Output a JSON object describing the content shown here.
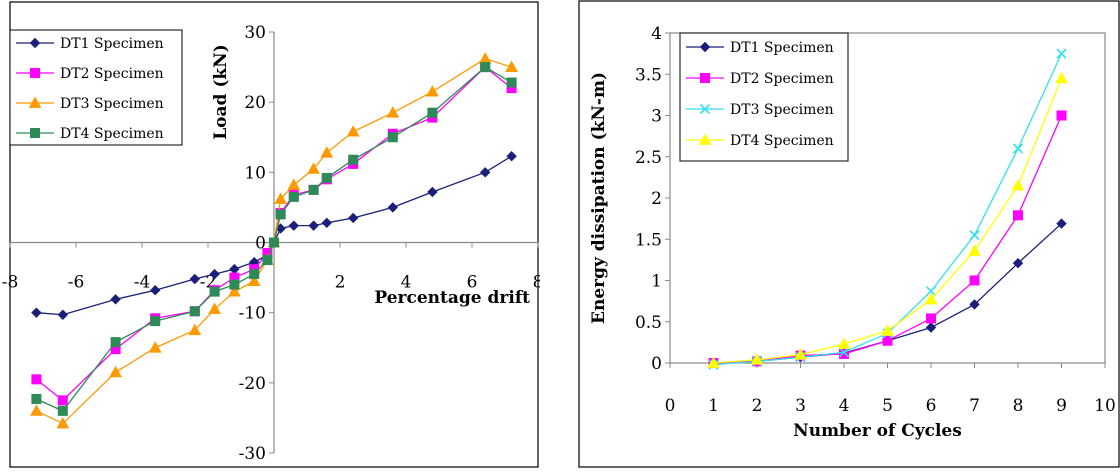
{
  "chart_data": [
    {
      "type": "line",
      "title": "",
      "xlabel": "Percentage drift",
      "ylabel": "Load (kN)",
      "xlim": [
        -8,
        8
      ],
      "ylim": [
        -30,
        30
      ],
      "xticks": [
        -8,
        -6,
        -4,
        -2,
        0,
        2,
        4,
        6,
        8
      ],
      "yticks": [
        -30,
        -20,
        -10,
        0,
        10,
        20,
        30
      ],
      "legend_position": "top-left",
      "grid": false,
      "series": [
        {
          "name": "DT1 Specimen",
          "color": "#1a1f7a",
          "marker": "diamond",
          "points": [
            [
              -7.2,
              -10.0
            ],
            [
              -6.4,
              -10.3
            ],
            [
              -4.8,
              -8.1
            ],
            [
              -3.6,
              -6.8
            ],
            [
              -2.4,
              -5.2
            ],
            [
              -1.8,
              -4.5
            ],
            [
              -1.2,
              -3.8
            ],
            [
              -0.6,
              -2.8
            ],
            [
              -0.2,
              -1.8
            ],
            [
              0,
              0
            ],
            [
              0.2,
              2.0
            ],
            [
              0.6,
              2.4
            ],
            [
              1.2,
              2.4
            ],
            [
              1.6,
              2.8
            ],
            [
              2.4,
              3.5
            ],
            [
              3.6,
              5.0
            ],
            [
              4.8,
              7.2
            ],
            [
              6.4,
              10.0
            ],
            [
              7.2,
              12.3
            ]
          ]
        },
        {
          "name": "DT2 Specimen",
          "color": "#ff00ff",
          "marker": "square",
          "points": [
            [
              -7.2,
              -19.5
            ],
            [
              -6.4,
              -22.5
            ],
            [
              -4.8,
              -15.2
            ],
            [
              -3.6,
              -10.8
            ],
            [
              -2.4,
              -9.8
            ],
            [
              -1.8,
              -6.8
            ],
            [
              -1.2,
              -5.0
            ],
            [
              -0.6,
              -3.8
            ],
            [
              -0.2,
              -1.5
            ],
            [
              0,
              0
            ],
            [
              0.2,
              4.2
            ],
            [
              0.6,
              6.8
            ],
            [
              1.2,
              7.5
            ],
            [
              1.6,
              9.0
            ],
            [
              2.4,
              11.2
            ],
            [
              3.6,
              15.5
            ],
            [
              4.8,
              17.8
            ],
            [
              6.4,
              25.0
            ],
            [
              7.2,
              22.0
            ]
          ]
        },
        {
          "name": "DT3 Specimen",
          "color": "#ff9900",
          "marker": "triangle",
          "points": [
            [
              -7.2,
              -24.0
            ],
            [
              -6.4,
              -25.8
            ],
            [
              -4.8,
              -18.5
            ],
            [
              -3.6,
              -15.0
            ],
            [
              -2.4,
              -12.5
            ],
            [
              -1.8,
              -9.5
            ],
            [
              -1.2,
              -7.0
            ],
            [
              -0.6,
              -5.5
            ],
            [
              -0.2,
              -2.5
            ],
            [
              0,
              0
            ],
            [
              0.2,
              6.2
            ],
            [
              0.6,
              8.2
            ],
            [
              1.2,
              10.5
            ],
            [
              1.6,
              12.8
            ],
            [
              2.4,
              15.8
            ],
            [
              3.6,
              18.5
            ],
            [
              4.8,
              21.5
            ],
            [
              6.4,
              26.2
            ],
            [
              7.2,
              25.0
            ]
          ]
        },
        {
          "name": "DT4 Specimen",
          "color": "#2e8b57",
          "marker": "square",
          "points": [
            [
              -7.2,
              -22.3
            ],
            [
              -6.4,
              -24.0
            ],
            [
              -4.8,
              -14.2
            ],
            [
              -3.6,
              -11.2
            ],
            [
              -2.4,
              -9.8
            ],
            [
              -1.8,
              -7.0
            ],
            [
              -1.2,
              -6.0
            ],
            [
              -0.6,
              -4.5
            ],
            [
              -0.2,
              -2.5
            ],
            [
              0,
              0
            ],
            [
              0.2,
              4.0
            ],
            [
              0.6,
              6.5
            ],
            [
              1.2,
              7.5
            ],
            [
              1.6,
              9.2
            ],
            [
              2.4,
              11.8
            ],
            [
              3.6,
              15.0
            ],
            [
              4.8,
              18.5
            ],
            [
              6.4,
              25.0
            ],
            [
              7.2,
              22.8
            ]
          ]
        }
      ]
    },
    {
      "type": "line",
      "title": "",
      "xlabel": "Number of Cycles",
      "ylabel": "Energy dissipation (kN-m)",
      "xlim": [
        0,
        10
      ],
      "ylim": [
        0,
        4
      ],
      "xticks": [
        0,
        1,
        2,
        3,
        4,
        5,
        6,
        7,
        8,
        9,
        10
      ],
      "yticks": [
        0,
        0.5,
        1,
        1.5,
        2,
        2.5,
        3,
        3.5,
        4
      ],
      "legend_position": "top-left",
      "grid": false,
      "series": [
        {
          "name": "DT1 Specimen",
          "color": "#1a1f7a",
          "marker": "diamond",
          "points": [
            [
              1,
              0.0
            ],
            [
              2,
              0.02
            ],
            [
              3,
              0.07
            ],
            [
              4,
              0.12
            ],
            [
              5,
              0.27
            ],
            [
              6,
              0.43
            ],
            [
              7,
              0.71
            ],
            [
              8,
              1.21
            ],
            [
              9,
              1.69
            ]
          ]
        },
        {
          "name": "DT2 Specimen",
          "color": "#ff00ff",
          "marker": "square",
          "points": [
            [
              1,
              0.0
            ],
            [
              2,
              0.02
            ],
            [
              3,
              0.09
            ],
            [
              4,
              0.11
            ],
            [
              5,
              0.27
            ],
            [
              6,
              0.54
            ],
            [
              7,
              1.0
            ],
            [
              8,
              1.79
            ],
            [
              9,
              3.0
            ]
          ]
        },
        {
          "name": "DT3 Specimen",
          "color": "#33e0ee",
          "marker": "x",
          "points": [
            [
              1,
              -0.02
            ],
            [
              2,
              0.02
            ],
            [
              3,
              0.07
            ],
            [
              4,
              0.13
            ],
            [
              5,
              0.36
            ],
            [
              6,
              0.87
            ],
            [
              7,
              1.55
            ],
            [
              8,
              2.6
            ],
            [
              9,
              3.75
            ]
          ]
        },
        {
          "name": "DT4 Specimen",
          "color": "#ffff00",
          "marker": "triangle",
          "points": [
            [
              1,
              0.0
            ],
            [
              2,
              0.04
            ],
            [
              3,
              0.1
            ],
            [
              4,
              0.23
            ],
            [
              5,
              0.39
            ],
            [
              6,
              0.77
            ],
            [
              7,
              1.36
            ],
            [
              8,
              2.15
            ],
            [
              9,
              3.45
            ]
          ]
        }
      ]
    }
  ]
}
